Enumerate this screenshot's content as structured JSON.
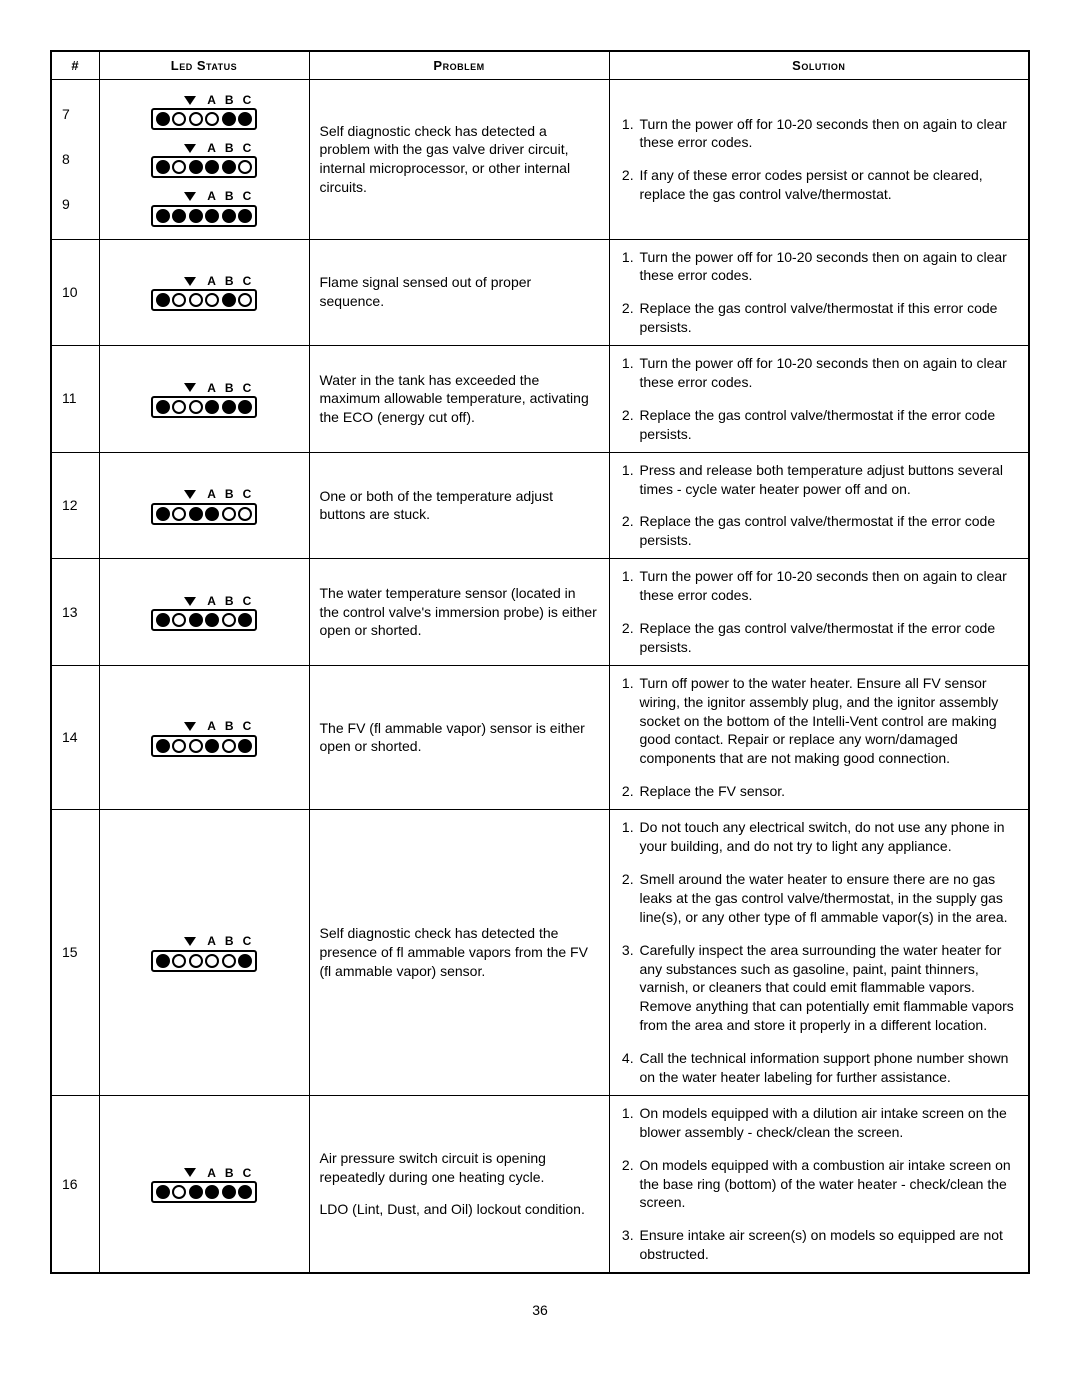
{
  "page_number": "36",
  "columns": {
    "num": "#",
    "led": "Led Status",
    "problem": "Problem",
    "solution": "Solution"
  },
  "abc": [
    "A",
    "B",
    "C"
  ],
  "led_colors": {
    "on": "#000000",
    "off": "#ffffff",
    "border": "#000000"
  },
  "rows": [
    {
      "nums": [
        "7",
        "8",
        "9"
      ],
      "leds": [
        [
          true,
          false,
          false,
          false,
          true,
          true
        ],
        [
          true,
          false,
          true,
          true,
          true,
          false
        ],
        [
          true,
          true,
          true,
          true,
          true,
          true
        ]
      ],
      "problem": "Self diagnostic check has detected a problem with the gas valve driver circuit, internal microprocessor, or other internal circuits.",
      "solutions": [
        "Turn the power off for 10-20 seconds then on again to clear these error codes.",
        "If any of these error codes persist or cannot be cleared, replace the gas control valve/thermostat."
      ]
    },
    {
      "nums": [
        "10"
      ],
      "leds": [
        [
          true,
          false,
          false,
          false,
          true,
          false
        ]
      ],
      "problem": "Flame signal sensed out of proper sequence.",
      "solutions": [
        "Turn the power off for 10-20 seconds then on again to clear these error codes.",
        "Replace the gas control valve/thermostat if this error code persists."
      ]
    },
    {
      "nums": [
        "11"
      ],
      "leds": [
        [
          true,
          false,
          false,
          true,
          true,
          true
        ]
      ],
      "problem": "Water in the tank has exceeded the maximum allowable temperature, activating the ECO (energy cut off).",
      "solutions": [
        "Turn the power off for 10-20 seconds then on again to clear these error codes.",
        "Replace the gas control valve/thermostat if the error code persists."
      ]
    },
    {
      "nums": [
        "12"
      ],
      "leds": [
        [
          true,
          false,
          true,
          true,
          false,
          false
        ]
      ],
      "problem": "One or both of the temperature adjust buttons are stuck.",
      "solutions": [
        "Press and release both temperature adjust buttons several times - cycle water heater power off and on.",
        "Replace the gas control valve/thermostat if the error code persists."
      ]
    },
    {
      "nums": [
        "13"
      ],
      "leds": [
        [
          true,
          false,
          true,
          true,
          false,
          true
        ]
      ],
      "problem": "The water temperature sensor (located in the control valve's immersion probe) is either open or shorted.",
      "solutions": [
        "Turn the power off for 10-20 seconds then on again to clear these error codes.",
        "Replace the gas control valve/thermostat if the error code persists."
      ]
    },
    {
      "nums": [
        "14"
      ],
      "leds": [
        [
          true,
          false,
          false,
          true,
          false,
          true
        ]
      ],
      "problem": "The FV (fl ammable vapor) sensor is either open or shorted.",
      "solutions": [
        "Turn off power to the water heater. Ensure all FV sensor wiring, the ignitor assembly plug, and the ignitor assembly socket on the bottom of the Intelli-Vent control are making good contact. Repair or replace any worn/damaged components that are not making good connection.",
        "Replace the FV sensor."
      ]
    },
    {
      "nums": [
        "15"
      ],
      "leds": [
        [
          true,
          false,
          false,
          false,
          false,
          true
        ]
      ],
      "problem": "Self diagnostic check has detected the presence of fl ammable vapors from the FV (fl ammable vapor) sensor.",
      "solutions": [
        "Do not touch any electrical switch, do not use any phone in your building, and do not try to light any appliance.",
        "Smell around the water heater to ensure there are no gas leaks at the gas control valve/thermostat, in the supply gas line(s), or any other type of fl ammable vapor(s) in the area.",
        "Carefully inspect the area surrounding the water heater for any substances such as gasoline, paint, paint thinners, varnish, or cleaners that could emit flammable vapors. Remove anything that can potentially emit flammable vapors from the area and store it properly in a different location.",
        "Call the technical information support phone number shown on the water heater labeling for further assistance."
      ]
    },
    {
      "nums": [
        "16"
      ],
      "leds": [
        [
          true,
          false,
          true,
          true,
          true,
          true
        ]
      ],
      "problem_multi": [
        "Air pressure switch circuit is opening repeatedly during one heating cycle.",
        "LDO (Lint, Dust, and Oil) lockout condition."
      ],
      "solutions": [
        "On models equipped with a dilution air intake screen on the blower assembly - check/clean the screen.",
        "On models equipped with a combustion air intake screen on the base ring (bottom) of the water heater - check/clean the screen.",
        "Ensure intake air screen(s) on models so equipped are not obstructed."
      ]
    }
  ]
}
